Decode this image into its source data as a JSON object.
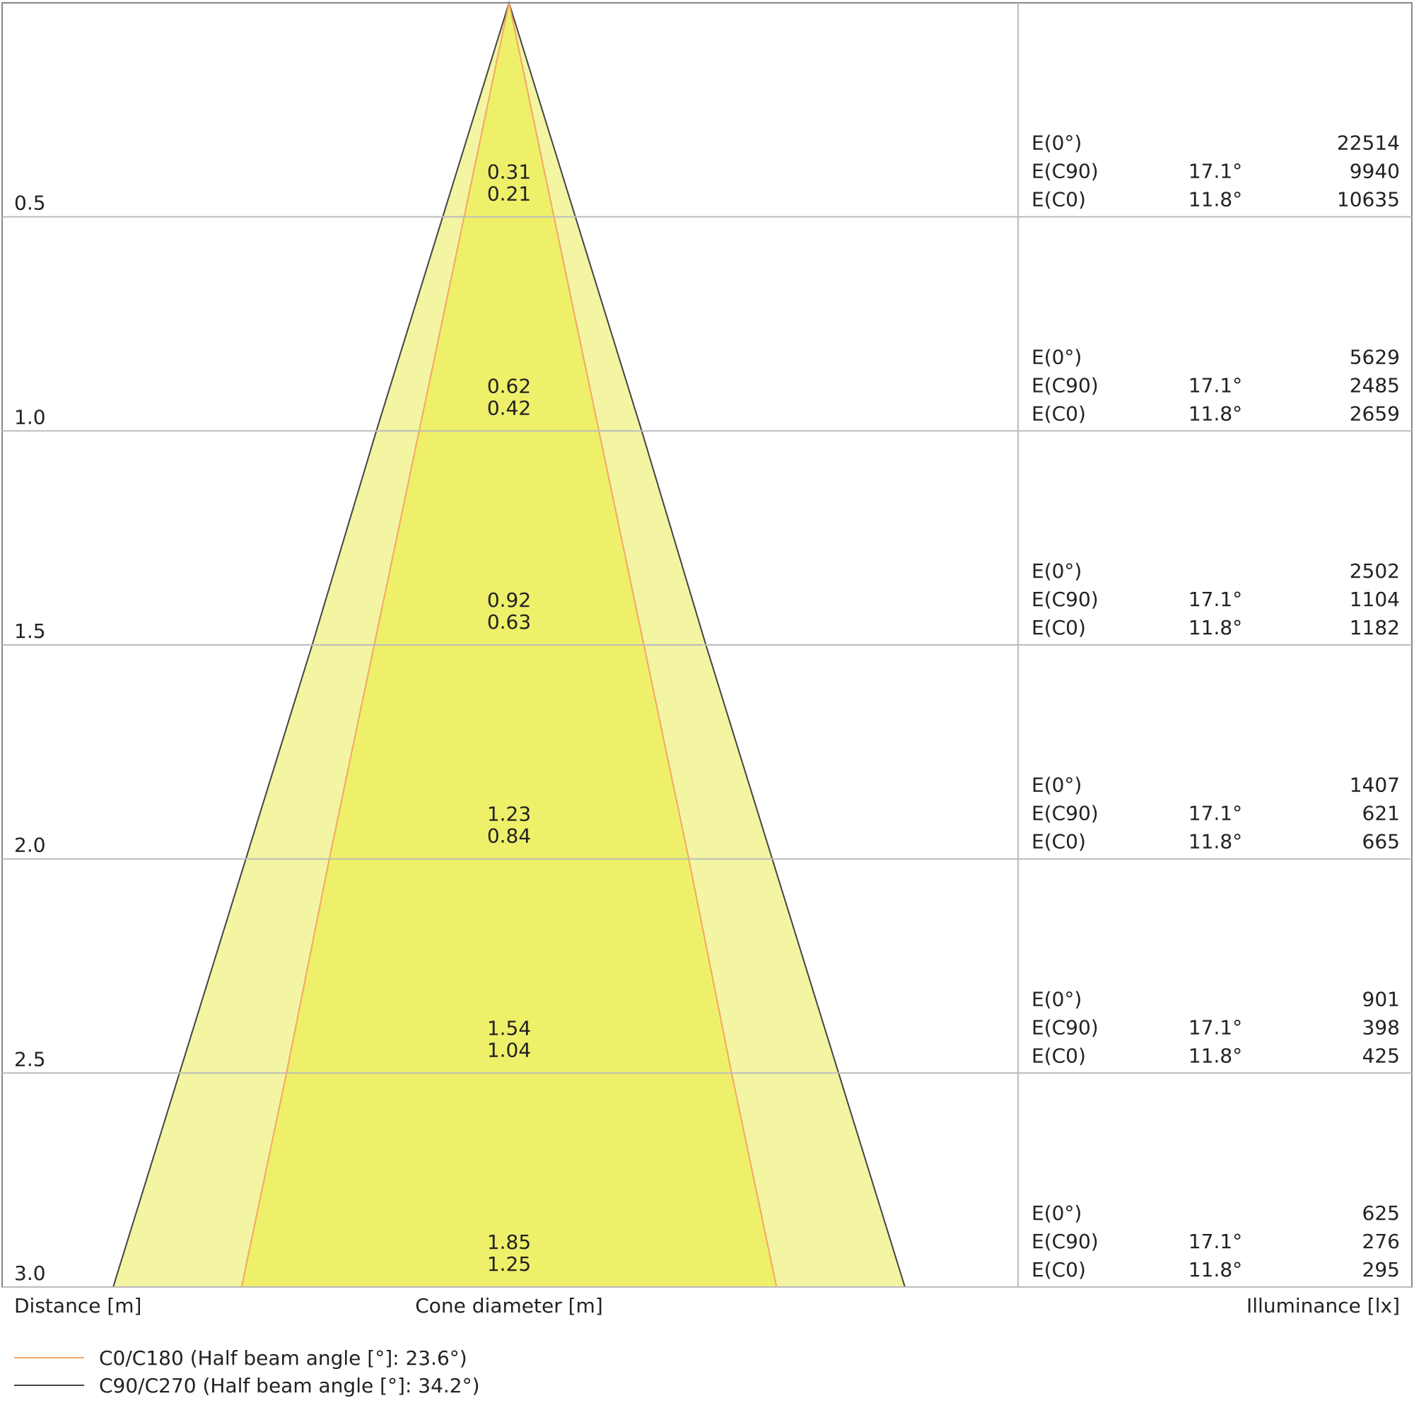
{
  "chart_data": {
    "type": "cone",
    "y_label": "Distance [m]",
    "x_label": "Cone diameter [m]",
    "illuminance_label": "Illuminance [lx]",
    "ylim": [
      0,
      3
    ],
    "yticks": [
      0.5,
      {
        "value": 1,
        "label": "1.0"
      },
      1.5,
      {
        "value": 2,
        "label": "2.0"
      },
      2.5,
      {
        "value": 3,
        "label": "3.0"
      }
    ],
    "series": [
      {
        "name": "C0/C180 (Half beam angle [°]: 23.6°)",
        "color": "#f5a565",
        "fill": "#eef06a",
        "values": [
          0.21,
          0.42,
          0.63,
          0.84,
          1.04,
          1.25
        ]
      },
      {
        "name": "C90/C270 (Half beam angle [°]: 34.2°)",
        "color": "#444444",
        "fill": "#f3f5a2",
        "values": [
          0.31,
          0.62,
          0.92,
          1.23,
          1.54,
          1.85
        ]
      }
    ],
    "illuminance": [
      {
        "label": "E(0°)",
        "values": [
          22514,
          5629,
          2502,
          1407,
          901,
          625
        ]
      },
      {
        "label": "E(C90)",
        "angle": "17.1°",
        "values": [
          9940,
          2485,
          1104,
          621,
          398,
          276
        ]
      },
      {
        "label": "E(C0)",
        "angle": "11.8°",
        "values": [
          10635,
          2659,
          1182,
          665,
          425,
          295
        ]
      }
    ]
  }
}
